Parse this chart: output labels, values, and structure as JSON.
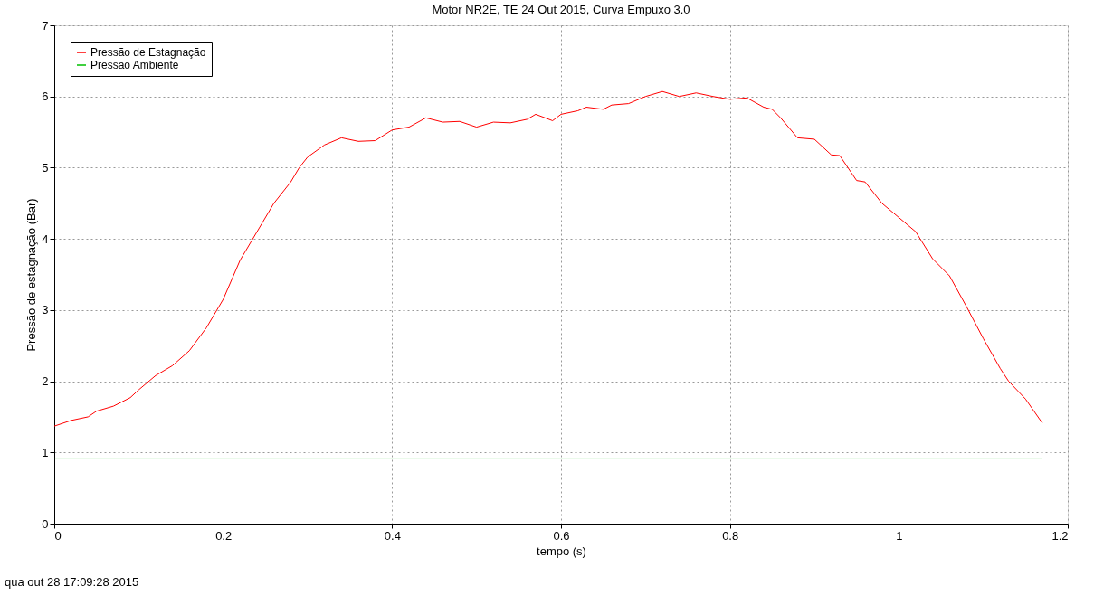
{
  "chart_data": {
    "type": "line",
    "title": "Motor NR2E, TE 24 Out 2015, Curva Empuxo 3.0",
    "xlabel": "tempo (s)",
    "ylabel": "Pressão de estagnação (Bar)",
    "xlim": [
      0,
      1.2
    ],
    "xticks": [
      0,
      0.2,
      0.4,
      0.6,
      0.8,
      1,
      1.2
    ],
    "ylim": [
      0,
      7
    ],
    "yticks": [
      0,
      1,
      2,
      3,
      4,
      5,
      6,
      7
    ],
    "grid": true,
    "legend": "top left",
    "line_style": "solid",
    "marker": "none",
    "annotations": [
      "qua out 28 17:09:28 2015"
    ],
    "series": [
      {
        "name": "Pressão de Estagnação",
        "color": "#ff0000",
        "x": [
          0,
          0.02,
          0.04,
          0.05,
          0.07,
          0.09,
          0.1,
          0.12,
          0.14,
          0.16,
          0.18,
          0.2,
          0.22,
          0.24,
          0.26,
          0.28,
          0.29,
          0.3,
          0.32,
          0.34,
          0.36,
          0.38,
          0.4,
          0.42,
          0.44,
          0.46,
          0.48,
          0.5,
          0.52,
          0.54,
          0.56,
          0.57,
          0.59,
          0.6,
          0.62,
          0.63,
          0.65,
          0.66,
          0.68,
          0.7,
          0.72,
          0.74,
          0.76,
          0.78,
          0.8,
          0.82,
          0.84,
          0.85,
          0.86,
          0.88,
          0.9,
          0.92,
          0.93,
          0.95,
          0.96,
          0.98,
          1.0,
          1.02,
          1.04,
          1.06,
          1.08,
          1.1,
          1.12,
          1.13,
          1.15,
          1.16,
          1.17
        ],
        "values": [
          1.37,
          1.45,
          1.5,
          1.58,
          1.65,
          1.77,
          1.88,
          2.08,
          2.22,
          2.43,
          2.75,
          3.15,
          3.7,
          4.1,
          4.5,
          4.8,
          5.0,
          5.15,
          5.32,
          5.42,
          5.37,
          5.38,
          5.53,
          5.57,
          5.7,
          5.64,
          5.65,
          5.57,
          5.64,
          5.63,
          5.68,
          5.75,
          5.66,
          5.75,
          5.8,
          5.85,
          5.82,
          5.88,
          5.9,
          6.0,
          6.07,
          6.0,
          6.05,
          6.0,
          5.96,
          5.98,
          5.85,
          5.82,
          5.7,
          5.42,
          5.4,
          5.18,
          5.17,
          4.82,
          4.8,
          4.5,
          4.3,
          4.1,
          3.72,
          3.48,
          3.05,
          2.6,
          2.18,
          2.0,
          1.75,
          1.58,
          1.41
        ]
      },
      {
        "name": "Pressão Ambiente",
        "color": "#00c000",
        "x": [
          0,
          1.17
        ],
        "values": [
          0.92,
          0.92
        ]
      }
    ]
  }
}
